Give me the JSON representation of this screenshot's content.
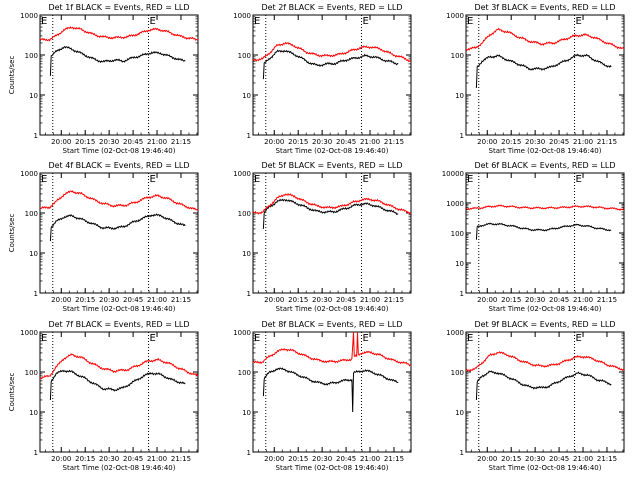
{
  "figure": {
    "layout": {
      "rows": 3,
      "cols": 3
    },
    "colors": {
      "events": "#000000",
      "lld": "#ff0000",
      "axes": "#000000",
      "background": "#ffffff"
    }
  },
  "chart_data": [
    {
      "type": "line",
      "title": "Det 1f BLACK = Events, RED = LLD",
      "xlabel": "Start Time (02-Oct-08 19:46:40)",
      "ylabel": "Counts/sec",
      "yscale": "log",
      "ylim": [
        1,
        1000
      ],
      "ytick_labels": [
        "1",
        "10",
        "100",
        "1000"
      ],
      "xlim_minutes_after_start": [
        0,
        99
      ],
      "x_tick_labels": [
        "20:00",
        "20:15",
        "20:30",
        "20:45",
        "21:00",
        "21:15"
      ],
      "x_tick_offsets_min": [
        13.33,
        28.33,
        43.33,
        58.33,
        73.33,
        88.33
      ],
      "corner_marks": [
        "E",
        "E"
      ],
      "markers_min": [
        8,
        68
      ],
      "series": [
        {
          "key": "events",
          "x_min": [
            6.5,
            7,
            10,
            15,
            20,
            28,
            35,
            40,
            47,
            52,
            58,
            65,
            70,
            76,
            82,
            88,
            91
          ],
          "y": [
            30,
            95,
            120,
            160,
            140,
            100,
            75,
            68,
            75,
            70,
            85,
            100,
            115,
            110,
            90,
            75,
            70
          ]
        },
        {
          "key": "lld",
          "x_min": [
            0,
            6,
            10,
            15,
            20,
            26,
            33,
            40,
            47,
            55,
            62,
            68,
            74,
            80,
            87,
            94,
            99
          ],
          "y": [
            240,
            245,
            300,
            420,
            500,
            430,
            330,
            280,
            270,
            285,
            340,
            420,
            440,
            380,
            300,
            260,
            240
          ]
        }
      ]
    },
    {
      "type": "line",
      "title": "Det 2f BLACK = Events, RED = LLD",
      "xlabel": "Start Time (02-Oct-08 19:46:40)",
      "ylabel": "",
      "yscale": "log",
      "ylim": [
        1,
        1000
      ],
      "ytick_labels": [
        "1",
        "10",
        "100",
        "1000"
      ],
      "xlim_minutes_after_start": [
        0,
        99
      ],
      "x_tick_labels": [
        "20:00",
        "20:15",
        "20:30",
        "20:45",
        "21:00",
        "21:15"
      ],
      "x_tick_offsets_min": [
        13.33,
        28.33,
        43.33,
        58.33,
        73.33,
        88.33
      ],
      "corner_marks": [
        "E",
        "E"
      ],
      "markers_min": [
        8,
        68
      ],
      "series": [
        {
          "key": "events",
          "x_min": [
            6.5,
            7,
            10,
            15,
            20,
            28,
            35,
            40,
            47,
            52,
            58,
            65,
            70,
            76,
            82,
            88,
            91
          ],
          "y": [
            25,
            60,
            80,
            120,
            130,
            95,
            65,
            55,
            60,
            62,
            75,
            85,
            95,
            90,
            75,
            65,
            60
          ]
        },
        {
          "key": "lld",
          "x_min": [
            0,
            6,
            10,
            15,
            20,
            26,
            33,
            40,
            47,
            55,
            62,
            68,
            74,
            80,
            87,
            94,
            99
          ],
          "y": [
            75,
            80,
            110,
            170,
            200,
            170,
            120,
            100,
            95,
            105,
            130,
            155,
            160,
            140,
            105,
            85,
            70
          ]
        }
      ]
    },
    {
      "type": "line",
      "title": "Det 3f BLACK = Events, RED = LLD",
      "xlabel": "Start Time (02-Oct-08 19:46:40)",
      "ylabel": "",
      "yscale": "log",
      "ylim": [
        1,
        1000
      ],
      "ytick_labels": [
        "1",
        "10",
        "100",
        "1000"
      ],
      "xlim_minutes_after_start": [
        0,
        99
      ],
      "x_tick_labels": [
        "20:00",
        "20:15",
        "20:30",
        "20:45",
        "21:00",
        "21:15"
      ],
      "x_tick_offsets_min": [
        13.33,
        28.33,
        43.33,
        58.33,
        73.33,
        88.33
      ],
      "corner_marks": [
        "E",
        "E"
      ],
      "markers_min": [
        8,
        68
      ],
      "series": [
        {
          "key": "events",
          "x_min": [
            6.5,
            7,
            10,
            15,
            20,
            28,
            35,
            40,
            47,
            52,
            58,
            65,
            70,
            76,
            82,
            88,
            91
          ],
          "y": [
            15,
            50,
            70,
            90,
            95,
            70,
            55,
            45,
            45,
            48,
            60,
            80,
            100,
            95,
            70,
            55,
            50
          ]
        },
        {
          "key": "lld",
          "x_min": [
            0,
            6,
            10,
            15,
            20,
            26,
            33,
            40,
            47,
            55,
            62,
            68,
            74,
            80,
            87,
            94,
            99
          ],
          "y": [
            140,
            150,
            200,
            320,
            430,
            380,
            280,
            220,
            190,
            200,
            250,
            300,
            320,
            280,
            210,
            165,
            140
          ]
        }
      ]
    },
    {
      "type": "line",
      "title": "Det 4f BLACK = Events, RED = LLD",
      "xlabel": "Start Time (02-Oct-08 19:46:40)",
      "ylabel": "Counts/sec",
      "yscale": "log",
      "ylim": [
        1,
        1000
      ],
      "ytick_labels": [
        "1",
        "10",
        "100",
        "1000"
      ],
      "xlim_minutes_after_start": [
        0,
        99
      ],
      "x_tick_labels": [
        "20:00",
        "20:15",
        "20:30",
        "20:45",
        "21:00",
        "21:15"
      ],
      "x_tick_offsets_min": [
        13.33,
        28.33,
        43.33,
        58.33,
        73.33,
        88.33
      ],
      "corner_marks": [
        "E",
        "E"
      ],
      "markers_min": [
        8,
        68
      ],
      "series": [
        {
          "key": "events",
          "x_min": [
            6.5,
            7,
            10,
            15,
            20,
            28,
            35,
            40,
            47,
            52,
            58,
            65,
            70,
            76,
            82,
            88,
            91
          ],
          "y": [
            20,
            45,
            60,
            80,
            85,
            65,
            50,
            42,
            42,
            45,
            58,
            75,
            90,
            85,
            65,
            52,
            48
          ]
        },
        {
          "key": "lld",
          "x_min": [
            0,
            6,
            10,
            15,
            20,
            26,
            33,
            40,
            47,
            55,
            62,
            68,
            74,
            80,
            87,
            94,
            99
          ],
          "y": [
            130,
            140,
            190,
            290,
            350,
            300,
            220,
            170,
            150,
            160,
            200,
            250,
            270,
            230,
            170,
            135,
            115
          ]
        }
      ]
    },
    {
      "type": "line",
      "title": "Det 5f BLACK = Events, RED = LLD",
      "xlabel": "Start Time (02-Oct-08 19:46:40)",
      "ylabel": "",
      "yscale": "log",
      "ylim": [
        1,
        1000
      ],
      "ytick_labels": [
        "1",
        "10",
        "100",
        "1000"
      ],
      "xlim_minutes_after_start": [
        0,
        99
      ],
      "x_tick_labels": [
        "20:00",
        "20:15",
        "20:30",
        "20:45",
        "21:00",
        "21:15"
      ],
      "x_tick_offsets_min": [
        13.33,
        28.33,
        43.33,
        58.33,
        73.33,
        88.33
      ],
      "corner_marks": [
        "E",
        "E"
      ],
      "markers_min": [
        8,
        68
      ],
      "series": [
        {
          "key": "events",
          "x_min": [
            6.5,
            7,
            10,
            15,
            20,
            28,
            35,
            40,
            47,
            52,
            58,
            65,
            70,
            76,
            82,
            88,
            91
          ],
          "y": [
            40,
            100,
            140,
            190,
            220,
            170,
            130,
            110,
            105,
            110,
            130,
            160,
            170,
            155,
            125,
            105,
            95
          ]
        },
        {
          "key": "lld",
          "x_min": [
            0,
            6,
            10,
            15,
            20,
            26,
            33,
            40,
            47,
            55,
            62,
            68,
            74,
            80,
            87,
            94,
            99
          ],
          "y": [
            100,
            105,
            150,
            230,
            300,
            260,
            190,
            150,
            135,
            145,
            180,
            215,
            220,
            190,
            145,
            115,
            100
          ]
        }
      ]
    },
    {
      "type": "line",
      "title": "Det 6f BLACK = Events, RED = LLD",
      "xlabel": "Start Time (02-Oct-08 19:46:40)",
      "ylabel": "",
      "yscale": "log",
      "ylim": [
        1,
        10000
      ],
      "ytick_labels": [
        "1",
        "10",
        "100",
        "1000",
        "10000"
      ],
      "xlim_minutes_after_start": [
        0,
        99
      ],
      "x_tick_labels": [
        "20:00",
        "20:15",
        "20:30",
        "20:45",
        "21:00",
        "21:15"
      ],
      "x_tick_offsets_min": [
        13.33,
        28.33,
        43.33,
        58.33,
        73.33,
        88.33
      ],
      "corner_marks": [
        "E",
        "E"
      ],
      "markers_min": [
        8,
        68
      ],
      "series": [
        {
          "key": "events",
          "x_min": [
            6.5,
            7,
            10,
            15,
            20,
            28,
            35,
            40,
            47,
            52,
            58,
            65,
            70,
            76,
            82,
            88,
            91
          ],
          "y": [
            60,
            160,
            180,
            200,
            200,
            175,
            145,
            130,
            125,
            130,
            150,
            175,
            185,
            170,
            145,
            130,
            125
          ]
        },
        {
          "key": "lld",
          "x_min": [
            0,
            6,
            10,
            15,
            20,
            26,
            33,
            40,
            47,
            55,
            62,
            68,
            74,
            80,
            87,
            94,
            99
          ],
          "y": [
            650,
            660,
            700,
            760,
            800,
            780,
            720,
            690,
            680,
            690,
            720,
            760,
            770,
            740,
            680,
            640,
            610
          ]
        }
      ]
    },
    {
      "type": "line",
      "title": "Det 7f BLACK = Events, RED = LLD",
      "xlabel": "Start Time (02-Oct-08 19:46:40)",
      "ylabel": "Counts/sec",
      "yscale": "log",
      "ylim": [
        1,
        1000
      ],
      "ytick_labels": [
        "1",
        "10",
        "100",
        "1000"
      ],
      "xlim_minutes_after_start": [
        0,
        99
      ],
      "x_tick_labels": [
        "20:00",
        "20:15",
        "20:30",
        "20:45",
        "21:00",
        "21:15"
      ],
      "x_tick_offsets_min": [
        13.33,
        28.33,
        43.33,
        58.33,
        73.33,
        88.33
      ],
      "corner_marks": [
        "E",
        "E"
      ],
      "markers_min": [
        8,
        68
      ],
      "series": [
        {
          "key": "events",
          "x_min": [
            6.5,
            7,
            10,
            15,
            20,
            28,
            35,
            40,
            47,
            52,
            58,
            65,
            70,
            76,
            82,
            88,
            91
          ],
          "y": [
            20,
            60,
            90,
            110,
            100,
            70,
            48,
            38,
            36,
            40,
            55,
            80,
            95,
            85,
            65,
            55,
            50
          ]
        },
        {
          "key": "lld",
          "x_min": [
            0,
            6,
            10,
            15,
            20,
            26,
            33,
            40,
            47,
            55,
            62,
            68,
            74,
            80,
            87,
            94,
            99
          ],
          "y": [
            70,
            80,
            130,
            220,
            270,
            230,
            160,
            120,
            105,
            115,
            150,
            190,
            200,
            170,
            125,
            95,
            80
          ]
        }
      ]
    },
    {
      "type": "line",
      "title": "Det 8f BLACK = Events, RED = LLD",
      "xlabel": "Start Time (02-Oct-08 19:46:40)",
      "ylabel": "",
      "yscale": "log",
      "ylim": [
        1,
        1000
      ],
      "ytick_labels": [
        "1",
        "10",
        "100",
        "1000"
      ],
      "xlim_minutes_after_start": [
        0,
        99
      ],
      "x_tick_labels": [
        "20:00",
        "20:15",
        "20:30",
        "20:45",
        "21:00",
        "21:15"
      ],
      "x_tick_offsets_min": [
        13.33,
        28.33,
        43.33,
        58.33,
        73.33,
        88.33
      ],
      "corner_marks": [
        "E",
        "E"
      ],
      "markers_min": [
        8,
        68
      ],
      "series": [
        {
          "key": "events",
          "x_min": [
            6.5,
            7,
            10,
            15,
            20,
            28,
            35,
            40,
            47,
            52,
            58,
            62,
            62.5,
            63,
            70,
            76,
            82,
            88,
            91
          ],
          "y": [
            25,
            70,
            95,
            120,
            115,
            85,
            65,
            55,
            50,
            55,
            62,
            65,
            10,
            95,
            110,
            95,
            75,
            60,
            55
          ]
        },
        {
          "key": "lld",
          "x_min": [
            0,
            6,
            10,
            15,
            20,
            26,
            33,
            40,
            47,
            55,
            62,
            63,
            63.5,
            65,
            65.5,
            66,
            68,
            74,
            80,
            87,
            94,
            99
          ],
          "y": [
            170,
            180,
            240,
            320,
            380,
            330,
            250,
            200,
            180,
            190,
            210,
            1000,
            240,
            250,
            1000,
            270,
            300,
            310,
            260,
            200,
            170,
            150
          ]
        }
      ]
    },
    {
      "type": "line",
      "title": "Det 9f BLACK = Events, RED = LLD",
      "xlabel": "Start Time (02-Oct-08 19:46:40)",
      "ylabel": "",
      "yscale": "log",
      "ylim": [
        1,
        1000
      ],
      "ytick_labels": [
        "1",
        "10",
        "100",
        "1000"
      ],
      "xlim_minutes_after_start": [
        0,
        99
      ],
      "x_tick_labels": [
        "20:00",
        "20:15",
        "20:30",
        "20:45",
        "21:00",
        "21:15"
      ],
      "x_tick_offsets_min": [
        13.33,
        28.33,
        43.33,
        58.33,
        73.33,
        88.33
      ],
      "corner_marks": [
        "E",
        "E"
      ],
      "markers_min": [
        8,
        68
      ],
      "series": [
        {
          "key": "events",
          "x_min": [
            6.5,
            7,
            10,
            15,
            20,
            28,
            35,
            40,
            47,
            52,
            58,
            65,
            70,
            76,
            82,
            88,
            91
          ],
          "y": [
            20,
            55,
            80,
            100,
            95,
            70,
            50,
            42,
            40,
            44,
            58,
            78,
            92,
            85,
            65,
            55,
            50
          ]
        },
        {
          "key": "lld",
          "x_min": [
            0,
            6,
            10,
            15,
            20,
            26,
            33,
            40,
            47,
            55,
            62,
            68,
            74,
            80,
            87,
            94,
            99
          ],
          "y": [
            110,
            120,
            170,
            260,
            310,
            270,
            200,
            160,
            140,
            150,
            185,
            230,
            245,
            210,
            160,
            130,
            115
          ]
        }
      ]
    }
  ]
}
